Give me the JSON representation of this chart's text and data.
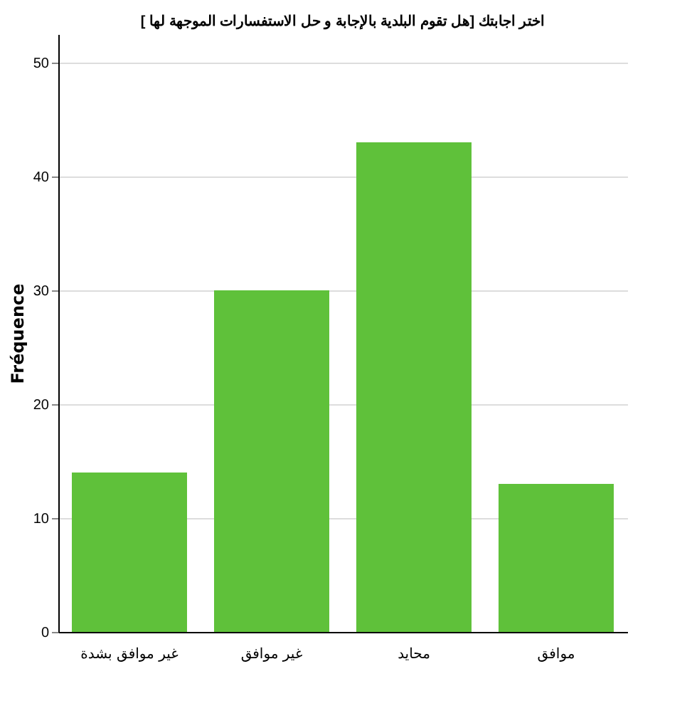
{
  "chart_data": {
    "type": "bar",
    "title": "اختر اجابتك [هل تقوم البلدية بالإجابة و حل الاستفسارات الموجهة لها ]",
    "categories": [
      "غير موافق بشدة",
      "غير موافق",
      "محايد",
      "موافق"
    ],
    "values": [
      14,
      30,
      43,
      13
    ],
    "color": "#5fc13a",
    "ylabel": "Fréquence",
    "ylim": [
      0,
      52.5
    ],
    "yticks": [
      0,
      10,
      20,
      30,
      40,
      50
    ],
    "grid": "y"
  }
}
